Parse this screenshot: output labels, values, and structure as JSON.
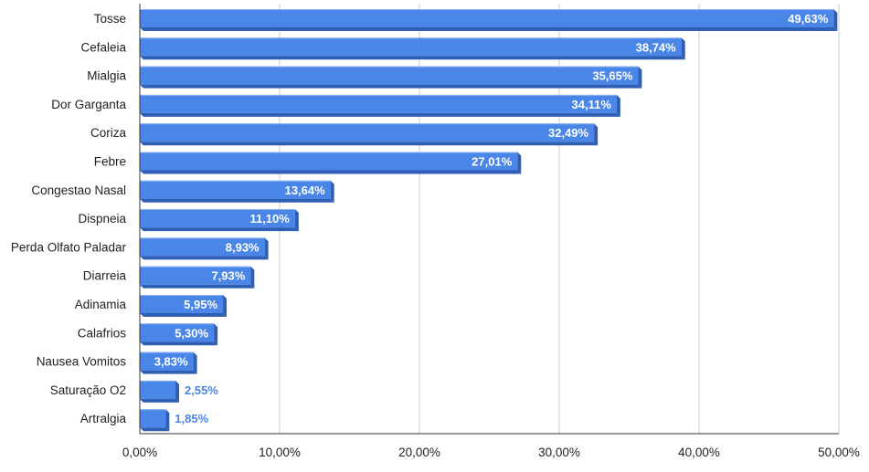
{
  "chart_data": {
    "type": "bar",
    "orientation": "horizontal",
    "effect": "3d",
    "categories": [
      "Tosse",
      "Cefaleia",
      "Mialgia",
      "Dor Garganta",
      "Coriza",
      "Febre",
      "Congestao Nasal",
      "Dispneia",
      "Perda Olfato Paladar",
      "Diarreia",
      "Adinamia",
      "Calafrios",
      "Nausea Vomitos",
      "Saturação O2",
      "Artralgia"
    ],
    "values": [
      49.63,
      38.74,
      35.65,
      34.11,
      32.49,
      27.01,
      13.64,
      11.1,
      8.93,
      7.93,
      5.95,
      5.3,
      3.83,
      2.55,
      1.85
    ],
    "value_labels": [
      "49,63%",
      "38,74%",
      "35,65%",
      "34,11%",
      "32,49%",
      "27,01%",
      "13,64%",
      "11,10%",
      "8,93%",
      "7,93%",
      "5,95%",
      "5,30%",
      "3,83%",
      "2,55%",
      "1,85%"
    ],
    "xlim": [
      0,
      50
    ],
    "x_ticks": [
      0,
      10,
      20,
      30,
      40,
      50
    ],
    "x_tick_labels": [
      "0,00%",
      "10,00%",
      "20,00%",
      "30,00%",
      "40,00%",
      "50,00%"
    ],
    "title": "",
    "xlabel": "",
    "ylabel": "",
    "grid": "vertical",
    "legend": "none",
    "colors": {
      "bar": "#4a86e8",
      "bar_dark": "#2f5fb5",
      "bar_light": "#8fb4f3",
      "label_inside": "#ffffff",
      "label_outside": "#4a86e8",
      "grid": "#cccccc",
      "axis": "#333333",
      "text": "#222222"
    }
  }
}
